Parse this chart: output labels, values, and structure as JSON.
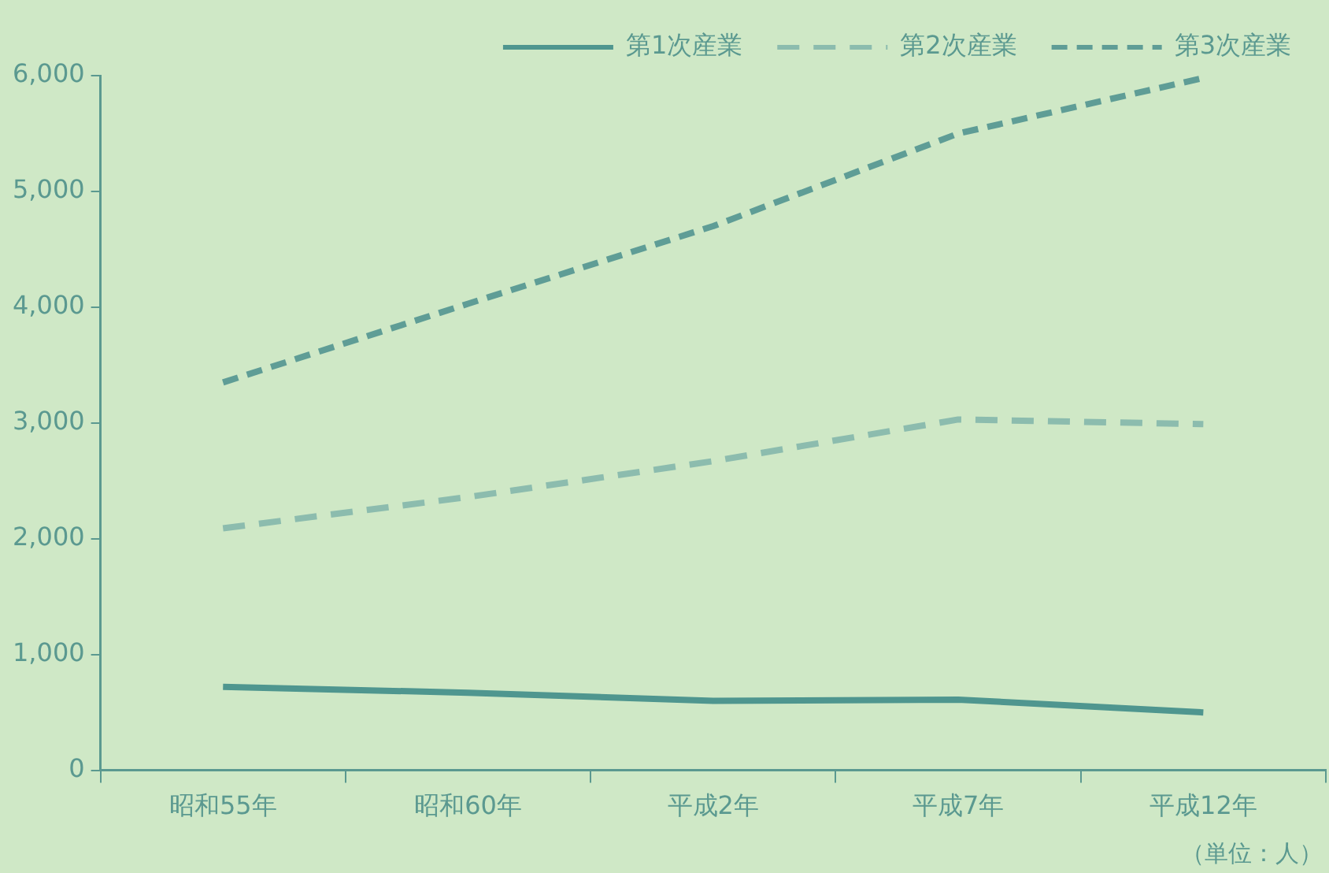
{
  "chart_data": {
    "type": "line",
    "categories": [
      "昭和55年",
      "昭和60年",
      "平成2年",
      "平成7年",
      "平成12年"
    ],
    "series": [
      {
        "name": "第1次産業",
        "color": "#4f968f",
        "line_style": "solid",
        "values": [
          720,
          670,
          600,
          610,
          500
        ]
      },
      {
        "name": "第2次産業",
        "color": "#8cbcae",
        "line_style": "dashed",
        "values": [
          2090,
          2360,
          2670,
          3030,
          2990
        ]
      },
      {
        "name": "第3次産業",
        "color": "#5f9d96",
        "line_style": "dashed",
        "values": [
          3350,
          4030,
          4700,
          5500,
          5980
        ]
      }
    ],
    "ylim": [
      0,
      6000
    ],
    "yticks": [
      0,
      {
        "value": 1000,
        "label": "1,000"
      },
      {
        "value": 2000,
        "label": "2,000"
      },
      {
        "value": 3000,
        "label": "3,000"
      },
      {
        "value": 4000,
        "label": "4,000"
      },
      {
        "value": 5000,
        "label": "5,000"
      },
      {
        "value": 6000,
        "label": "6,000"
      }
    ],
    "grid": false,
    "legend": "top",
    "marker": "none",
    "annotations": [
      "（単位：人）"
    ]
  }
}
